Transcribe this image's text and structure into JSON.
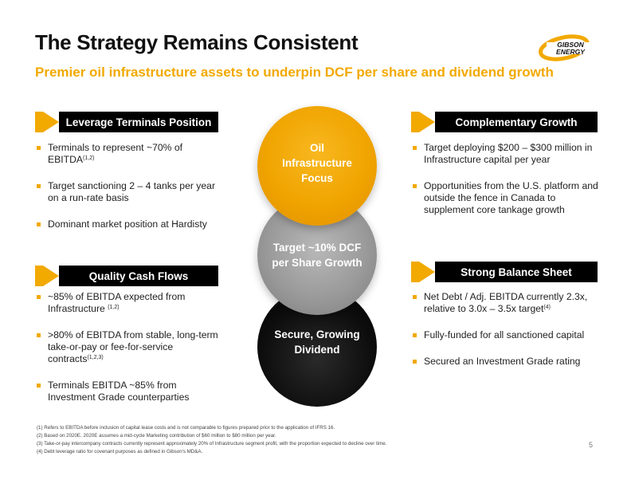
{
  "title": "The Strategy Remains Consistent",
  "subtitle": "Premier oil infrastructure assets to underpin DCF per share and dividend growth",
  "logo": {
    "line1": "GIBSON",
    "line2": "ENERGY"
  },
  "colors": {
    "accent": "#f2a900",
    "dark": "#000000",
    "circle_top": "#f5a800",
    "circle_mid": "#9e9e9e",
    "circle_bottom": "#111111"
  },
  "sections": {
    "leverage": {
      "header": "Leverage Terminals Position",
      "b1": "Terminals to represent ~70% of EBITDA",
      "b1_sup": "(1,2)",
      "b2": "Target sanctioning 2 – 4 tanks per year on a run-rate basis",
      "b3": "Dominant market position at Hardisty"
    },
    "quality": {
      "header": "Quality Cash Flows",
      "b1": "~85% of EBITDA expected from Infrastructure",
      "b1_sup": "(1,2)",
      "b2": ">80% of EBITDA from stable, long-term take-or-pay or fee-for-service contracts",
      "b2_sup": "(1,2,3)",
      "b3": "Terminals EBITDA ~85% from Investment Grade counterparties"
    },
    "complementary": {
      "header": "Complementary Growth",
      "b1": "Target deploying $200 – $300 million in Infrastructure capital per year",
      "b2": "Opportunities from the U.S. platform and outside the fence in Canada to supplement core tankage growth"
    },
    "balance": {
      "header": "Strong Balance Sheet",
      "b1": "Net Debt / Adj. EBITDA currently 2.3x, relative to 3.0x – 3.5x target",
      "b1_sup": "(4)",
      "b2": "Fully-funded for all sanctioned capital",
      "b3": "Secured an Investment Grade rating"
    }
  },
  "circles": {
    "top": {
      "l1": "Oil",
      "l2": "Infrastructure",
      "l3": "Focus"
    },
    "mid": {
      "l1": "Target ~10% DCF",
      "l2": "per Share Growth"
    },
    "bottom": {
      "l1": "Secure, Growing",
      "l2": "Dividend"
    }
  },
  "footnotes": [
    "(1) Refers to EBITDA before inclusion of capital lease costs and is not comparable to figures prepared prior to the application of IFRS 16.",
    "(2) Based on 2020E. 2020E assumes a mid-cycle Marketing contribution of $60 million to $80 million per year.",
    "(3) Take-or-pay intercompany contracts currently represent approximately 20% of Infrastructure segment profit, with the proportion expected to decline over time.",
    "(4) Debt leverage ratio for covenant purposes as defined in Gibson's MD&A."
  ],
  "page_number": "5"
}
